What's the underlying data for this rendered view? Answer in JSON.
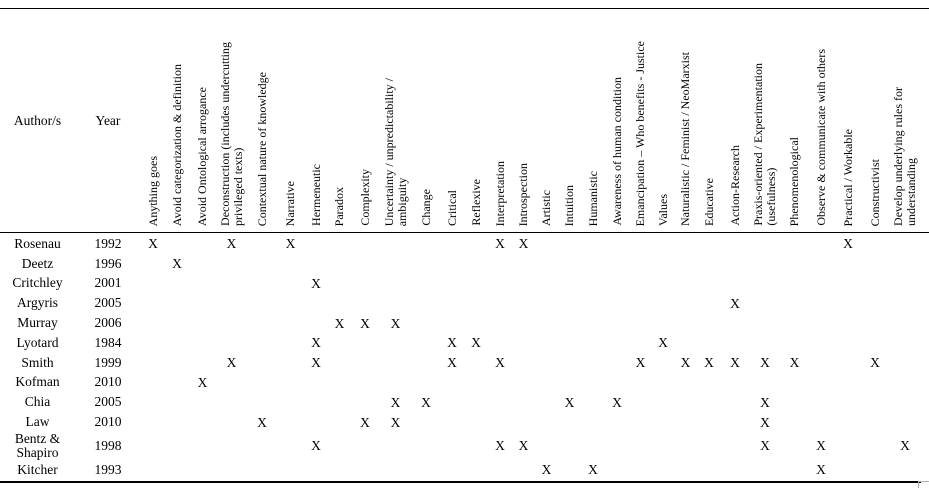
{
  "table": {
    "author_header": "Author/s",
    "year_header": "Year",
    "mark_symbol": "X",
    "columns": [
      "Anything goes",
      "Avoid categorization & definition",
      "Avoid Ontological arrogance",
      "Deconstruction (includes undercutting\nprivileged texts)",
      "Contextual nature of knowledge",
      "Narrative",
      "Hermeneutic",
      "Paradox",
      "Complexity",
      "Uncertainty / unpredictability /\nambiguity",
      "Change",
      "Critical",
      "Reflexive",
      "Interpretation",
      "Introspection",
      "Artistic",
      "Intuition",
      "Humanistic",
      "Awareness of human condition",
      "Emancipation – Who benefits - Justice",
      "Values",
      "Naturalistic / Feminist / NeoMarxist",
      "Educative",
      "Action-Research",
      "Praxis-oriented / Experimentation\n(usefulness)",
      "Phenomenological",
      "Observe & communicate with others",
      "Practical / Workable",
      "Constructivist",
      "Develop underlying rules for\nunderstanding"
    ],
    "rows": [
      {
        "author": "Rosenau",
        "year": "1992",
        "marks": [
          0,
          3,
          5,
          13,
          14,
          27
        ]
      },
      {
        "author": "Deetz",
        "year": "1996",
        "marks": [
          1
        ]
      },
      {
        "author": "Critchley",
        "year": "2001",
        "marks": [
          6
        ]
      },
      {
        "author": "Argyris",
        "year": "2005",
        "marks": [
          23
        ]
      },
      {
        "author": "Murray",
        "year": "2006",
        "marks": [
          7,
          8,
          9
        ]
      },
      {
        "author": "Lyotard",
        "year": "1984",
        "marks": [
          6,
          11,
          12,
          20
        ]
      },
      {
        "author": "Smith",
        "year": "1999",
        "marks": [
          3,
          6,
          11,
          13,
          19,
          21,
          22,
          23,
          24,
          25,
          28
        ]
      },
      {
        "author": "Kofman",
        "year": "2010",
        "marks": [
          2
        ]
      },
      {
        "author": "Chia",
        "year": "2005",
        "marks": [
          9,
          10,
          16,
          18,
          24
        ]
      },
      {
        "author": "Law",
        "year": "2010",
        "marks": [
          4,
          8,
          9,
          24
        ]
      },
      {
        "author": "Bentz & Shapiro",
        "year": "1998",
        "marks": [
          6,
          13,
          14,
          24,
          26,
          29
        ]
      },
      {
        "author": "Kitcher",
        "year": "1993",
        "marks": [
          15,
          17,
          26
        ]
      }
    ]
  }
}
